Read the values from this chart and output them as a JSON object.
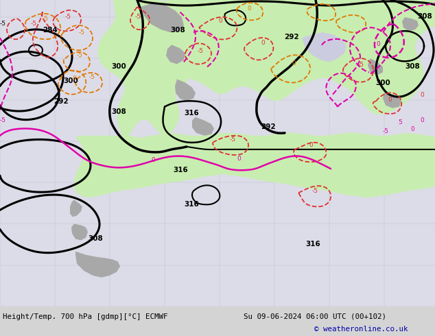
{
  "title_left": "Height/Temp. 700 hPa [gdmp][°C] ECMWF",
  "title_right": "Su 09-06-2024 06:00 UTC (00+102)",
  "copyright": "© weatheronline.co.uk",
  "bg_color": "#d4d4d4",
  "map_bg": "#e0e0e8",
  "land_green": "#c8edb0",
  "land_gray": "#a8a8a8",
  "fig_width": 6.34,
  "fig_height": 4.9,
  "dpi": 100,
  "bottom_bar_color": "#c8c8c8"
}
